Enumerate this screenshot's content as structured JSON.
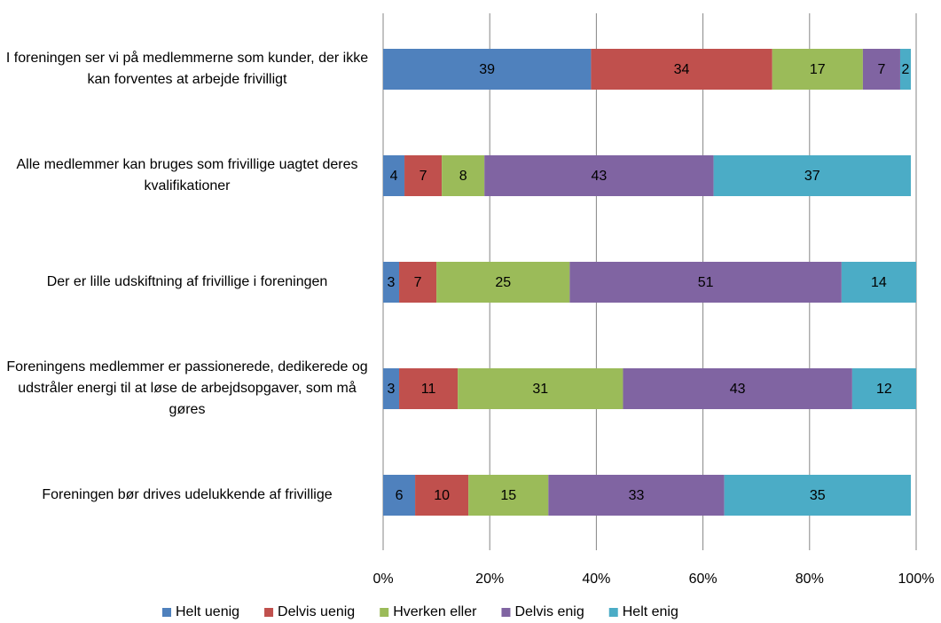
{
  "chart_data": {
    "type": "stacked_barh",
    "categories": [
      "I foreningen ser vi på medlemmerne som kunder, der ikke kan forventes at arbejde frivilligt",
      "Alle medlemmer kan bruges som frivillige uagtet deres kvalifikationer",
      "Der er lille udskiftning af frivillige i foreningen",
      "Foreningens medlemmer er passionerede, dedikerede og udstråler energi til at løse de arbejdsopgaver, som må gøres",
      "Foreningen bør drives udelukkende af frivillige"
    ],
    "series": [
      {
        "name": "Helt uenig",
        "color": "#4f81bd",
        "values": [
          39,
          4,
          3,
          3,
          6
        ]
      },
      {
        "name": "Delvis uenig",
        "color": "#c0504d",
        "values": [
          34,
          7,
          7,
          11,
          10
        ]
      },
      {
        "name": "Hverken eller",
        "color": "#9bbb59",
        "values": [
          17,
          8,
          25,
          31,
          15
        ]
      },
      {
        "name": "Delvis enig",
        "color": "#8064a2",
        "values": [
          7,
          43,
          51,
          43,
          33
        ]
      },
      {
        "name": "Helt enig",
        "color": "#4bacc6",
        "values": [
          2,
          37,
          14,
          12,
          35
        ]
      }
    ],
    "xlim": [
      0,
      100
    ],
    "xticks": [
      {
        "value": 0,
        "label": "0%"
      },
      {
        "value": 20,
        "label": "20%"
      },
      {
        "value": 40,
        "label": "40%"
      },
      {
        "value": 60,
        "label": "60%"
      },
      {
        "value": 80,
        "label": "80%"
      },
      {
        "value": 100,
        "label": "100%"
      }
    ],
    "grid": true,
    "legend": "bottom"
  }
}
